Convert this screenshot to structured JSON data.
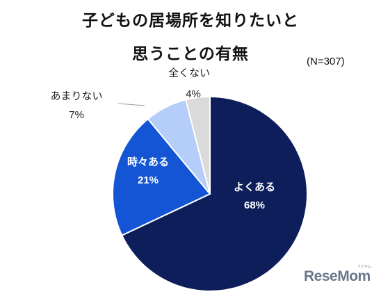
{
  "title_lines": [
    "子どもの居場所を知りたいと",
    "思うことの有無"
  ],
  "sample_note": "(N=307)",
  "watermark": {
    "text": "ReseMom",
    "sup": "リセマム"
  },
  "chart_data": {
    "type": "pie",
    "title": "子どもの居場所を知りたいと思うことの有無",
    "slices": [
      {
        "label": "よくある",
        "value": 68,
        "value_label": "68%",
        "color": "#0d1e5a",
        "text_color": "#ffffff"
      },
      {
        "label": "時々ある",
        "value": 21,
        "value_label": "21%",
        "color": "#1455d6",
        "text_color": "#ffffff"
      },
      {
        "label": "あまりない",
        "value": 7,
        "value_label": "7%",
        "color": "#b5cdf9",
        "text_color": "#222222"
      },
      {
        "label": "全くない",
        "value": 4,
        "value_label": "4%",
        "color": "#dadada",
        "text_color": "#222222"
      }
    ],
    "start": "12 o'clock",
    "direction": "clockwise",
    "legend": "none"
  }
}
